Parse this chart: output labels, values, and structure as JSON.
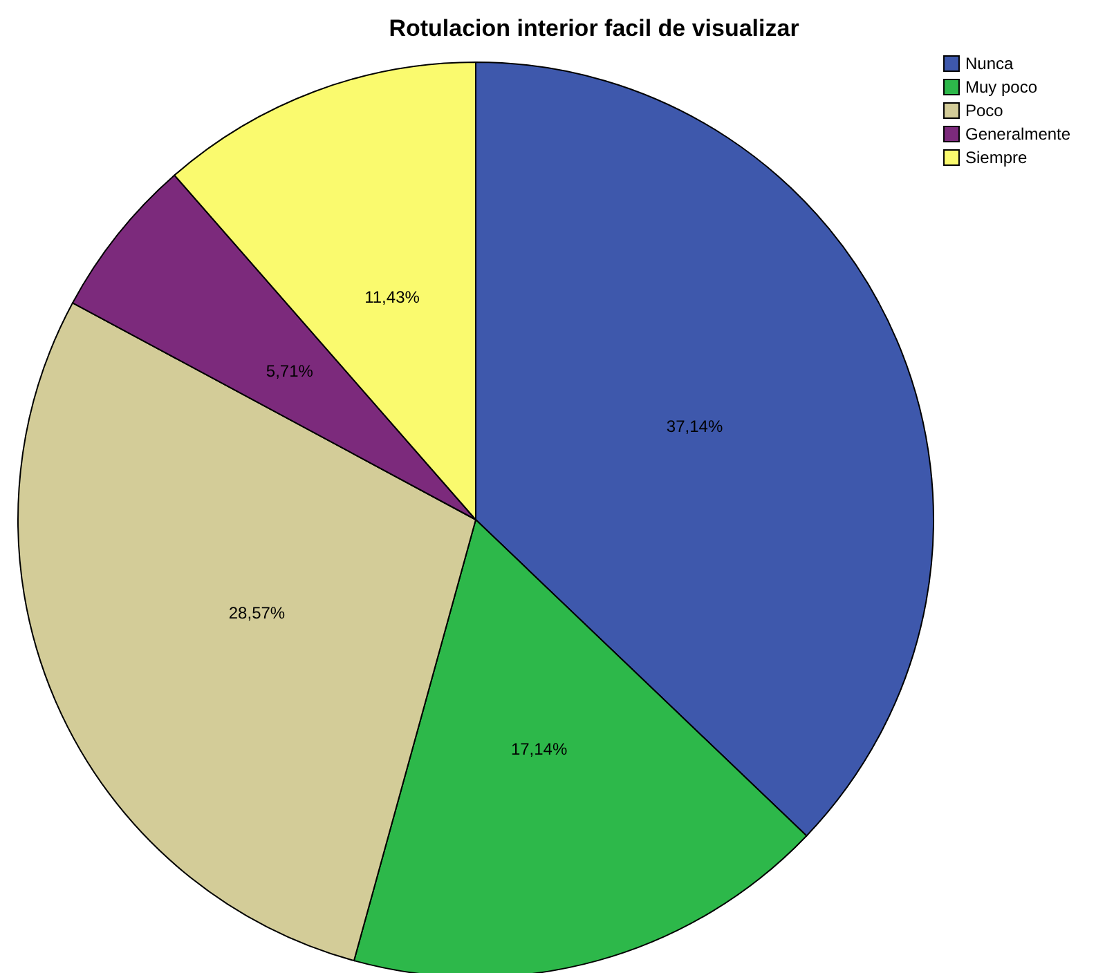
{
  "chart_data": {
    "type": "pie",
    "title": "Rotulacion interior facil de visualizar",
    "categories": [
      "Nunca",
      "Muy poco",
      "Poco",
      "Generalmente",
      "Siempre"
    ],
    "values": [
      37.14,
      17.14,
      28.57,
      5.71,
      11.43
    ],
    "colors": [
      "#3e58ac",
      "#2db84a",
      "#d3cc98",
      "#7c2a7c",
      "#fafa6e"
    ],
    "value_labels": [
      "37,14%",
      "17,14%",
      "28,57%",
      "5,71%",
      "11,43%"
    ],
    "legend": "top right"
  }
}
